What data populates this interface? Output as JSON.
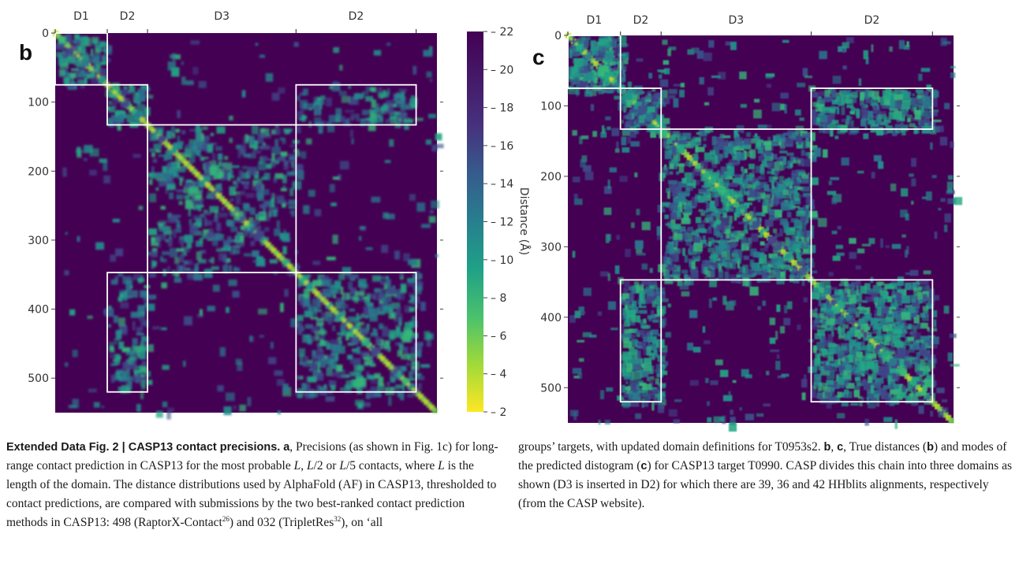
{
  "panels": [
    {
      "letter": "b",
      "domain_labels": [
        "D1",
        "D2",
        "D3",
        "D2"
      ],
      "domain_bounds": [
        0,
        75,
        133,
        347,
        520
      ],
      "axis_max": 550,
      "y_ticks": [
        {
          "value": 0,
          "label": "0"
        },
        {
          "value": 100,
          "label": "100"
        },
        {
          "value": 200,
          "label": "200"
        },
        {
          "value": 300,
          "label": "300"
        },
        {
          "value": 400,
          "label": "400"
        },
        {
          "value": 500,
          "label": "500"
        }
      ]
    },
    {
      "letter": "c",
      "domain_labels": [
        "D1",
        "D2",
        "D3",
        "D2"
      ],
      "domain_bounds": [
        0,
        75,
        133,
        347,
        520
      ],
      "axis_max": 550,
      "y_ticks": [
        {
          "value": 0,
          "label": "0"
        },
        {
          "value": 100,
          "label": "100"
        },
        {
          "value": 200,
          "label": "200"
        },
        {
          "value": 300,
          "label": "300"
        },
        {
          "value": 400,
          "label": "400"
        },
        {
          "value": 500,
          "label": "500"
        }
      ]
    }
  ],
  "colorbar": {
    "label": "Distance (Å)",
    "min": 2,
    "max": 22,
    "ticks": [
      "22",
      "20",
      "18",
      "16",
      "14",
      "12",
      "10",
      "8",
      "6",
      "4",
      "2"
    ]
  },
  "colors": {
    "background_dark": "#440154",
    "box_outline": "#ffffff"
  },
  "caption": {
    "bold_title": "Extended Data Fig. 2 | CASP13 contact precisions.",
    "a_letter": "a",
    "text_a1": ", Precisions (as shown in Fig. 1c) for long-range contact prediction in CASP13 for the most probable ",
    "L": "L",
    "sep1": ", ",
    "L2": "L",
    "slash2": "/2 or ",
    "L3": "L",
    "slash5": "/5 contacts, where ",
    "L4": "L",
    "text_a2": " is the length of the domain. The distance distributions used by AlphaFold (AF) in CASP13, thresholded to contact predictions, are compared with submissions by the two best-ranked contact prediction methods in CASP13: 498 (RaptorX-Contact",
    "ref26": "26",
    "text_a3": ") and 032 (TripletRes",
    "ref32": "32",
    "text_a4": "), on ‘all groups’ targets, with updated domain definitions for T0953s2. ",
    "b_letter": "b",
    "comma": ", ",
    "c_letter": "c",
    "text_b1": ", True distances (",
    "b_letter2": "b",
    "text_b2": ") and modes of the predicted distogram (",
    "c_letter2": "c",
    "text_b3": ") for CASP13 target T0990. CASP divides this chain into three domains as shown (D3 is inserted in D2) for which there are 39, 36 and 42 HHblits alignments, respectively (from the CASP website)."
  }
}
